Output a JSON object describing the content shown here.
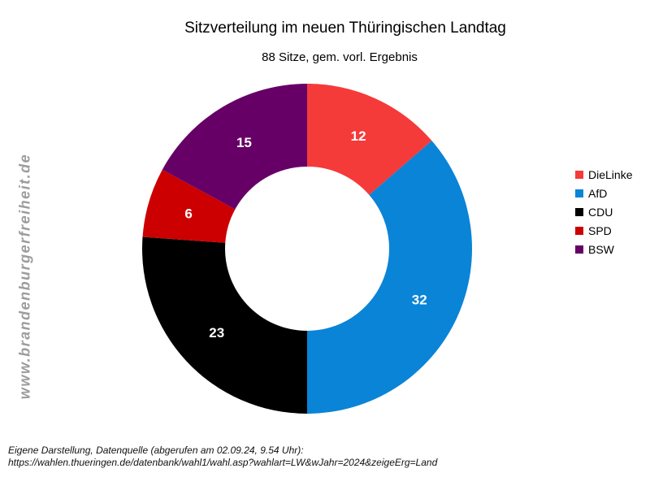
{
  "chart_data": {
    "type": "pie",
    "title": "Sitzverteilung im neuen Thüringischen Landtag",
    "subtitle": "88 Sitze, gem. vorl. Ergebnis",
    "categories": [
      "DieLinke",
      "AfD",
      "CDU",
      "SPD",
      "BSW"
    ],
    "values": [
      12,
      32,
      23,
      6,
      15
    ],
    "colors": [
      "#f53a3a",
      "#0a84d6",
      "#000000",
      "#cc0000",
      "#660066"
    ],
    "legend_position": "right"
  },
  "watermark": "www.brandenburgerfreiheit.de",
  "source": {
    "line1": "Eigene Darstellung, Datenquelle (abgerufen am 02.09.24, 9.54 Uhr):",
    "line2": "https://wahlen.thueringen.de/datenbank/wahl1/wahl.asp?wahlart=LW&wJahr=2024&zeigeErg=Land"
  }
}
